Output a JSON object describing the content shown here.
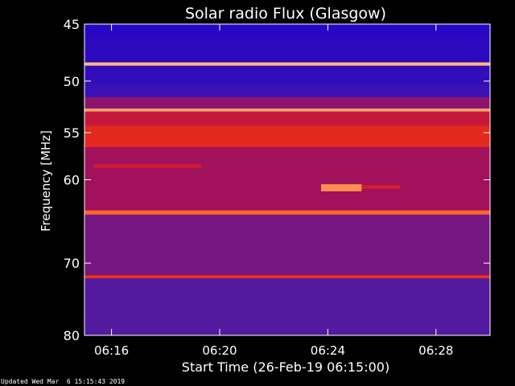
{
  "footer_text": "Updated Wed Mar  6 15:15:43 2019",
  "chart_data": {
    "type": "heatmap",
    "title": "Solar radio Flux (Glasgow)",
    "xlabel": "Start Time (26-Feb-19 06:15:00)",
    "ylabel": "Frequency [MHz]",
    "x_ticks": [
      "06:16",
      "06:20",
      "06:24",
      "06:28"
    ],
    "y_ticks": [
      45,
      50,
      55,
      60,
      70,
      80
    ],
    "xlim": [
      "06:15:00",
      "06:30:00"
    ],
    "ylim": [
      45,
      80
    ],
    "y_scale": "log",
    "colors": {
      "background": "#000000",
      "baseline": "#4a1aa6",
      "low": "#1a00d0",
      "mid": "#b80f4a",
      "high": "#ff3a00",
      "peak": "#ffe8a0"
    },
    "bands": [
      {
        "f_min": 45.0,
        "f_max": 46.0,
        "intensity": 0.08
      },
      {
        "f_min": 46.0,
        "f_max": 48.3,
        "intensity": 0.12
      },
      {
        "f_min": 48.3,
        "f_max": 48.6,
        "intensity": 0.95
      },
      {
        "f_min": 48.6,
        "f_max": 50.3,
        "intensity": 0.15
      },
      {
        "f_min": 50.3,
        "f_max": 51.5,
        "intensity": 0.2
      },
      {
        "f_min": 51.5,
        "f_max": 52.6,
        "intensity": 0.45
      },
      {
        "f_min": 52.6,
        "f_max": 52.9,
        "intensity": 0.92
      },
      {
        "f_min": 52.9,
        "f_max": 54.3,
        "intensity": 0.6
      },
      {
        "f_min": 54.3,
        "f_max": 56.5,
        "intensity": 0.7
      },
      {
        "f_min": 56.5,
        "f_max": 63.5,
        "intensity": 0.5
      },
      {
        "f_min": 63.5,
        "f_max": 64.0,
        "intensity": 0.85
      },
      {
        "f_min": 64.0,
        "f_max": 71.6,
        "intensity": 0.4
      },
      {
        "f_min": 71.6,
        "f_max": 72.0,
        "intensity": 0.75
      },
      {
        "f_min": 72.0,
        "f_max": 80.0,
        "intensity": 0.32
      }
    ],
    "bursts": [
      {
        "t_start": "06:23:45",
        "t_end": "06:25:15",
        "f_min": 60.5,
        "f_max": 61.3,
        "intensity": 0.9
      },
      {
        "t_start": "06:25:15",
        "t_end": "06:26:40",
        "f_min": 60.6,
        "f_max": 61.0,
        "intensity": 0.65
      },
      {
        "t_start": "06:15:20",
        "t_end": "06:19:20",
        "f_min": 58.3,
        "f_max": 58.7,
        "intensity": 0.62
      }
    ]
  }
}
